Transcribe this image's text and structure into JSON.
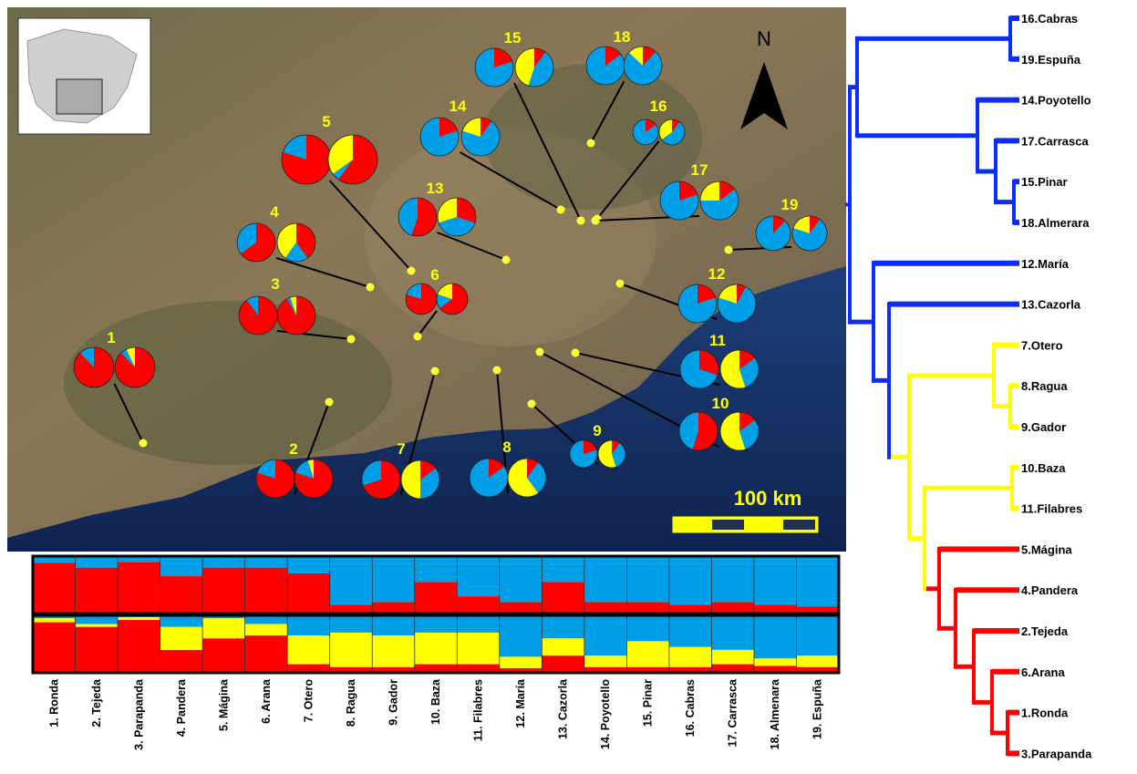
{
  "cluster_colors": [
    "#ff0000",
    "#00a0e8",
    "#ffff00"
  ],
  "populations": [
    {
      "label": "1",
      "name": "1. Ronda",
      "k2": [
        88,
        12
      ],
      "k3": [
        88,
        5,
        7
      ]
    },
    {
      "label": "2",
      "name": "2. Tejeda",
      "k2": [
        80,
        20
      ],
      "k3": [
        80,
        15,
        5
      ]
    },
    {
      "label": "3",
      "name": "3. Parapanda",
      "k2": [
        90,
        10
      ],
      "k3": [
        92,
        3,
        5
      ]
    },
    {
      "label": "4",
      "name": "4. Pandera",
      "k2": [
        65,
        35
      ],
      "k3": [
        40,
        20,
        40
      ]
    },
    {
      "label": "5",
      "name": "5. Mágina",
      "k2": [
        80,
        20
      ],
      "k3": [
        60,
        5,
        35
      ]
    },
    {
      "label": "6",
      "name": "6. Arana",
      "k2": [
        80,
        20
      ],
      "k3": [
        65,
        15,
        20
      ]
    },
    {
      "label": "7",
      "name": "7. Otero",
      "k2": [
        70,
        30
      ],
      "k3": [
        15,
        35,
        50
      ]
    },
    {
      "label": "8",
      "name": "8. Ragua",
      "k2": [
        15,
        85
      ],
      "k3": [
        10,
        30,
        60
      ]
    },
    {
      "label": "9",
      "name": "9. Gador",
      "k2": [
        20,
        80
      ],
      "k3": [
        10,
        35,
        55
      ]
    },
    {
      "label": "10",
      "name": "10. Baza",
      "k2": [
        55,
        45
      ],
      "k3": [
        15,
        30,
        55
      ]
    },
    {
      "label": "11",
      "name": "11. Filabres",
      "k2": [
        30,
        70
      ],
      "k3": [
        15,
        30,
        55
      ]
    },
    {
      "label": "12",
      "name": "12. María",
      "k2": [
        20,
        80
      ],
      "k3": [
        8,
        72,
        20
      ]
    },
    {
      "label": "13",
      "name": "13. Cazorla",
      "k2": [
        55,
        45
      ],
      "k3": [
        30,
        40,
        30
      ]
    },
    {
      "label": "14",
      "name": "14. Poyotello",
      "k2": [
        20,
        80
      ],
      "k3": [
        10,
        70,
        20
      ]
    },
    {
      "label": "15",
      "name": "15. Pinar",
      "k2": [
        20,
        80
      ],
      "k3": [
        10,
        45,
        45
      ]
    },
    {
      "label": "16",
      "name": "16. Cabras",
      "k2": [
        15,
        85
      ],
      "k3": [
        10,
        55,
        35
      ]
    },
    {
      "label": "17",
      "name": "17. Carrasca",
      "k2": [
        20,
        80
      ],
      "k3": [
        15,
        60,
        25
      ]
    },
    {
      "label": "18",
      "name": "18. Almenara",
      "k2": [
        15,
        85
      ],
      "k3": [
        12,
        75,
        13
      ]
    },
    {
      "label": "19",
      "name": "19. Espuña",
      "k2": [
        12,
        88
      ],
      "k3": [
        10,
        70,
        20
      ]
    }
  ],
  "north": "N",
  "scale_label": "100 km",
  "tree_leaves": [
    {
      "label": "16.Cabras",
      "color": "#0a2cff"
    },
    {
      "label": "19.Espuña",
      "color": "#0a2cff"
    },
    {
      "label": "14.Poyotello",
      "color": "#0a2cff"
    },
    {
      "label": "17.Carrasca",
      "color": "#0a2cff"
    },
    {
      "label": "15.Pinar",
      "color": "#0a2cff"
    },
    {
      "label": "18.Almerara",
      "color": "#0a2cff"
    },
    {
      "label": "12.María",
      "color": "#0a2cff"
    },
    {
      "label": "13.Cazorla",
      "color": "#0a2cff"
    },
    {
      "label": "7.Otero",
      "color": "#ffff00"
    },
    {
      "label": "8.Ragua",
      "color": "#ffff00"
    },
    {
      "label": "9.Gador",
      "color": "#ffff00"
    },
    {
      "label": "10.Baza",
      "color": "#ffff00"
    },
    {
      "label": "11.Filabres",
      "color": "#ffff00"
    },
    {
      "label": "5.Mágina",
      "color": "#ff0000"
    },
    {
      "label": "4.Pandera",
      "color": "#ff0000"
    },
    {
      "label": "2.Tejeda",
      "color": "#ff0000"
    },
    {
      "label": "6.Arana",
      "color": "#ff0000"
    },
    {
      "label": "1.Ronda",
      "color": "#ff0000"
    },
    {
      "label": "3.Parapanda",
      "color": "#ff0000"
    }
  ]
}
